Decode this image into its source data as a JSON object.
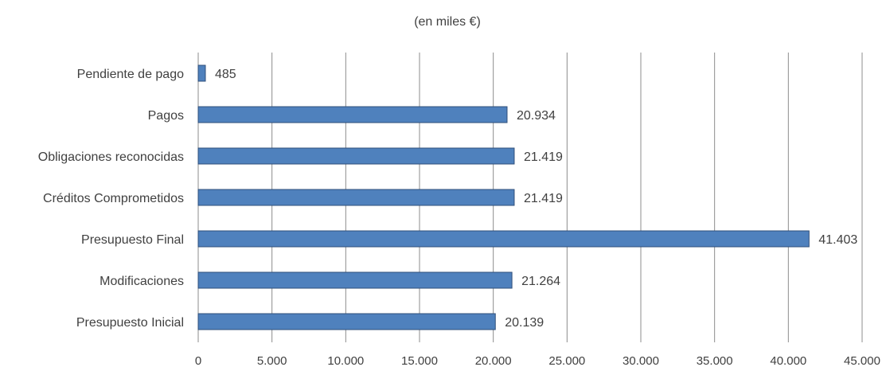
{
  "chart_data": {
    "type": "bar",
    "orientation": "horizontal",
    "title": "(en miles €)",
    "categories": [
      "Pendiente de pago",
      "Pagos",
      "Obligaciones reconocidas",
      "Créditos Comprometidos",
      "Presupuesto Final",
      "Modificaciones",
      "Presupuesto Inicial"
    ],
    "values": [
      485,
      20934,
      21419,
      21419,
      41403,
      21264,
      20139
    ],
    "value_labels": [
      "485",
      "20.934",
      "21.419",
      "21.419",
      "41.403",
      "21.264",
      "20.139"
    ],
    "xlim": [
      0,
      45000
    ],
    "x_ticks": [
      0,
      5000,
      10000,
      15000,
      20000,
      25000,
      30000,
      35000,
      40000,
      45000
    ],
    "x_tick_labels": [
      "0",
      "5.000",
      "10.000",
      "15.000",
      "20.000",
      "25.000",
      "30.000",
      "35.000",
      "40.000",
      "45.000"
    ],
    "grid": "vertical",
    "legend": "none",
    "bar_color": "#4f81bd"
  }
}
